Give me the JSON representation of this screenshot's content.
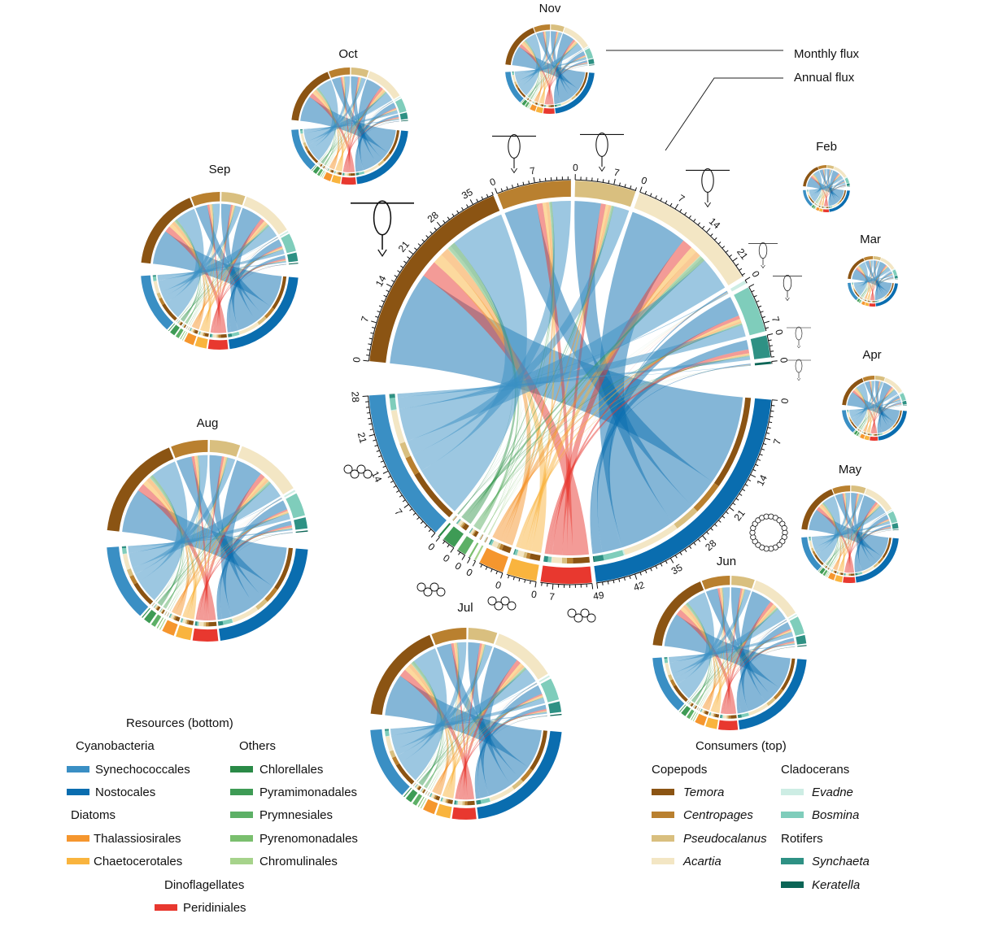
{
  "chart_data": {
    "type": "chord",
    "title": "",
    "callouts": {
      "monthly": "Monthly flux",
      "annual": "Annual flux"
    },
    "months": [
      "Nov",
      "Oct",
      "Sep",
      "Aug",
      "Jul",
      "Jun",
      "May",
      "Apr",
      "Mar",
      "Feb"
    ],
    "month_scale": {
      "Nov": 0.55,
      "Oct": 0.72,
      "Sep": 0.97,
      "Aug": 1.24,
      "Jul": 1.18,
      "Jun": 0.95,
      "May": 0.6,
      "Apr": 0.4,
      "Mar": 0.31,
      "Feb": 0.29
    },
    "tick_major_step": 7,
    "consumers": [
      {
        "name": "Temora",
        "group": "Copepods",
        "color": "#8B5413"
      },
      {
        "name": "Centropages",
        "group": "Copepods",
        "color": "#B9802F"
      },
      {
        "name": "Pseudocalanus",
        "group": "Copepods",
        "color": "#D9BF7F"
      },
      {
        "name": "Acartia",
        "group": "Copepods",
        "color": "#F3E6C4"
      },
      {
        "name": "Evadne",
        "group": "Cladocerans",
        "color": "#CDEDE4"
      },
      {
        "name": "Bosmina",
        "group": "Cladocerans",
        "color": "#7FCDBB"
      },
      {
        "name": "Synchaeta",
        "group": "Rotifers",
        "color": "#2E9184"
      },
      {
        "name": "Keratella",
        "group": "Rotifers",
        "color": "#0B6556"
      }
    ],
    "resources": [
      {
        "name": "Nostocales",
        "group": "Cyanobacteria",
        "color": "#0A6DAF"
      },
      {
        "name": "Peridiniales",
        "group": "Dinoflagellates",
        "color": "#E8382F"
      },
      {
        "name": "Chaetocerotales",
        "group": "Diatoms",
        "color": "#F9B43E"
      },
      {
        "name": "Thalassiosirales",
        "group": "Diatoms",
        "color": "#F5962E"
      },
      {
        "name": "Chromulinales",
        "group": "Others",
        "color": "#A6D38B"
      },
      {
        "name": "Pyrenomonadales",
        "group": "Others",
        "color": "#7ABF6E"
      },
      {
        "name": "Prymnesiales",
        "group": "Others",
        "color": "#5DB066"
      },
      {
        "name": "Pyramimonadales",
        "group": "Others",
        "color": "#3E9B55"
      },
      {
        "name": "Chlorellales",
        "group": "Others",
        "color": "#2A8A47"
      },
      {
        "name": "Synechococcales",
        "group": "Cyanobacteria",
        "color": "#3A8FC4"
      }
    ],
    "annual_flux_matrix_rows_consumers_cols_resources": [
      [
        19.0,
        3.4,
        2.1,
        1.7,
        0.1,
        0.1,
        0.6,
        0.9,
        0.1,
        11.0
      ],
      [
        6.6,
        1.2,
        0.7,
        0.6,
        0.04,
        0.04,
        0.2,
        0.3,
        0.04,
        3.8
      ],
      [
        5.3,
        1.0,
        0.6,
        0.5,
        0.03,
        0.03,
        0.2,
        0.3,
        0.03,
        3.1
      ],
      [
        11.7,
        2.1,
        1.3,
        1.1,
        0.1,
        0.1,
        0.4,
        0.6,
        0.1,
        6.8
      ],
      [
        0.3,
        0.05,
        0.03,
        0.03,
        0.01,
        0.01,
        0.01,
        0.01,
        0.01,
        0.17
      ],
      [
        4.1,
        0.7,
        0.5,
        0.4,
        0.03,
        0.03,
        0.1,
        0.2,
        0.03,
        2.4
      ],
      [
        1.9,
        0.8,
        0.2,
        0.2,
        0.01,
        0.01,
        0.1,
        0.1,
        0.01,
        0.7
      ],
      [
        0.2,
        0.04,
        0.02,
        0.02,
        0.01,
        0.01,
        0.01,
        0.01,
        0.01,
        0.1
      ]
    ]
  },
  "legend": {
    "resources_title": "Resources (bottom)",
    "cyanobacteria": "Cyanobacteria",
    "synechococcales": "Synechococcales",
    "nostocales": "Nostocales",
    "diatoms": "Diatoms",
    "thalassiosirales": "Thalassiosirales",
    "chaetocerotales": "Chaetocerotales",
    "dinoflagellates": "Dinoflagellates",
    "peridiniales": "Peridiniales",
    "others": "Others",
    "chlorellales": "Chlorellales",
    "pyramimonadales": "Pyramimonadales",
    "prymnesiales": "Prymnesiales",
    "pyrenomonadales": "Pyrenomonadales",
    "chromulinales": "Chromulinales",
    "consumers_title": "Consumers (top)",
    "copepods": "Copepods",
    "temora": "Temora",
    "centropages": "Centropages",
    "pseudocalanus": "Pseudocalanus",
    "acartia": "Acartia",
    "cladocerans": "Cladocerans",
    "evadne": "Evadne",
    "bosmina": "Bosmina",
    "rotifers": "Rotifers",
    "synchaeta": "Synchaeta",
    "keratella": "Keratella"
  }
}
